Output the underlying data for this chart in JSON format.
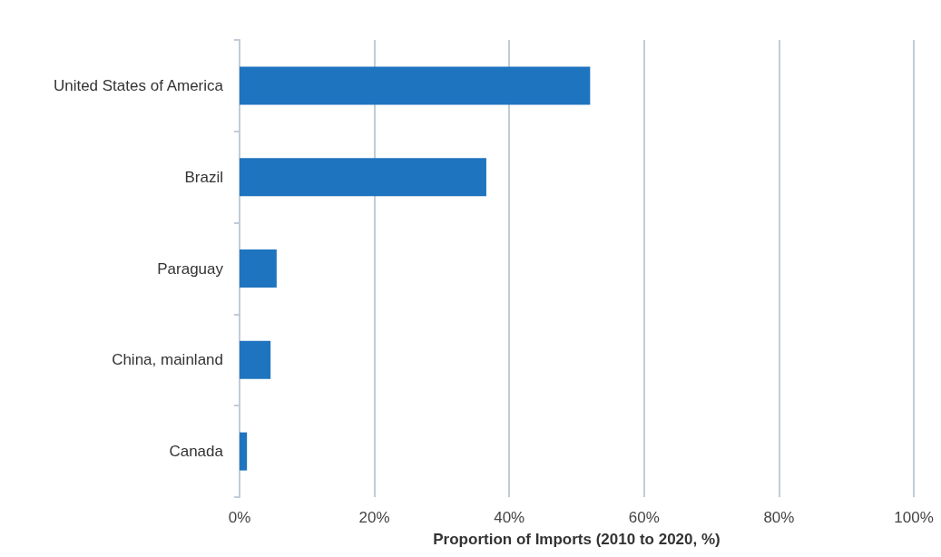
{
  "chart_data": {
    "type": "bar",
    "orientation": "horizontal",
    "categories": [
      "United States of America",
      "Brazil",
      "Paraguay",
      "China, mainland",
      "Canada"
    ],
    "values": [
      52,
      36.6,
      5.5,
      4.6,
      1.1
    ],
    "color": "#1f74bf",
    "xlabel": "Proportion of Imports (2010 to 2020, %)",
    "xlim": [
      0,
      100
    ],
    "xticks": [
      {
        "value": 0,
        "label": "0%"
      },
      {
        "value": 20,
        "label": "20%"
      },
      {
        "value": 40,
        "label": "40%"
      },
      {
        "value": 60,
        "label": "60%"
      },
      {
        "value": 80,
        "label": "80%"
      },
      {
        "value": 100,
        "label": "100%"
      }
    ],
    "grid": "x"
  }
}
